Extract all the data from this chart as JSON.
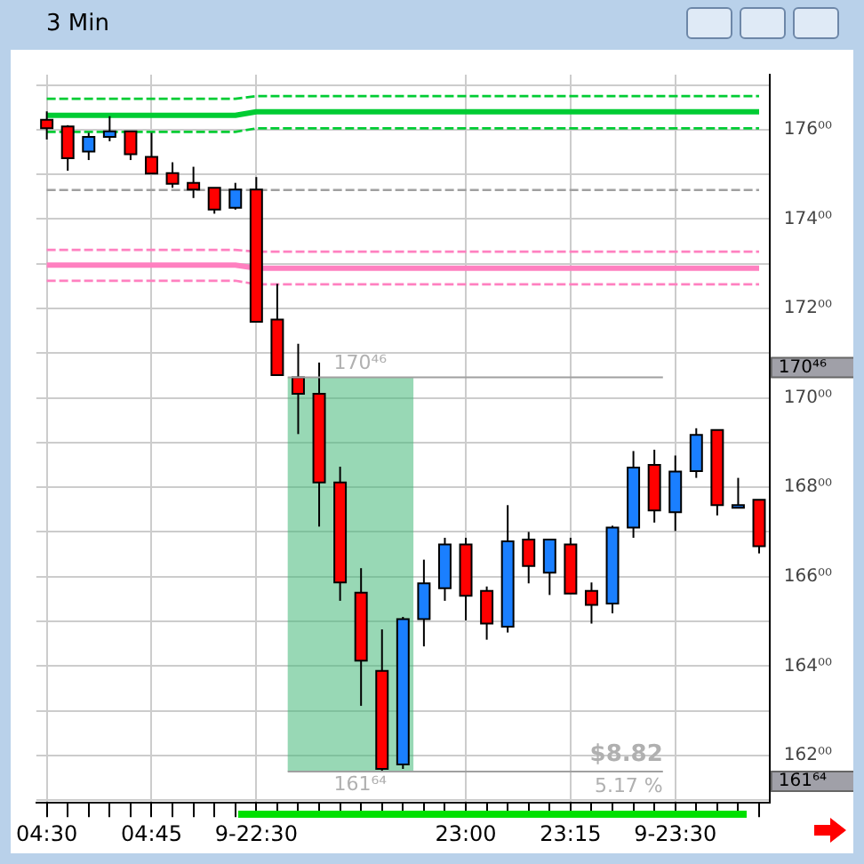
{
  "chart_data": {
    "type": "candlestick",
    "title": "3 Min",
    "categories": [
      "04:30",
      null,
      null,
      null,
      null,
      "04:45",
      null,
      null,
      null,
      null,
      "9-22:30",
      null,
      null,
      null,
      null,
      null,
      null,
      null,
      null,
      null,
      "23:00",
      null,
      null,
      null,
      null,
      "23:15",
      null,
      null,
      null,
      null,
      "9-23:30",
      null,
      null,
      null,
      null
    ],
    "ohlc": [
      [
        176.22,
        176.41,
        175.78,
        176.03
      ],
      [
        176.07,
        176.1,
        175.08,
        175.36
      ],
      [
        175.51,
        175.93,
        175.32,
        175.84
      ],
      [
        175.84,
        176.3,
        175.74,
        175.96
      ],
      [
        175.96,
        175.96,
        175.32,
        175.45
      ],
      [
        175.39,
        175.93,
        175.02,
        175.02
      ],
      [
        175.03,
        175.27,
        174.7,
        174.79
      ],
      [
        174.81,
        175.17,
        174.47,
        174.66
      ],
      [
        174.7,
        174.7,
        174.12,
        174.21
      ],
      [
        174.25,
        174.81,
        174.21,
        174.66
      ],
      [
        174.66,
        174.94,
        171.7,
        171.7
      ],
      [
        171.75,
        172.55,
        170.51,
        170.51
      ],
      [
        170.46,
        171.21,
        169.19,
        170.09
      ],
      [
        170.09,
        170.79,
        167.12,
        168.11
      ],
      [
        168.11,
        168.46,
        165.46,
        165.87
      ],
      [
        165.64,
        166.19,
        163.11,
        164.12
      ],
      [
        163.89,
        164.82,
        161.64,
        161.7
      ],
      [
        161.8,
        165.1,
        161.7,
        165.05
      ],
      [
        165.05,
        166.38,
        164.44,
        165.85
      ],
      [
        165.74,
        166.87,
        165.46,
        166.72
      ],
      [
        166.72,
        166.87,
        165.02,
        165.57
      ],
      [
        165.68,
        165.78,
        164.59,
        164.95
      ],
      [
        164.88,
        167.6,
        164.75,
        166.79
      ],
      [
        166.83,
        167.0,
        165.85,
        166.24
      ],
      [
        166.09,
        166.83,
        165.59,
        166.83
      ],
      [
        166.72,
        166.87,
        165.62,
        165.62
      ],
      [
        165.68,
        165.87,
        164.95,
        165.37
      ],
      [
        165.4,
        167.14,
        165.18,
        167.1
      ],
      [
        167.1,
        168.81,
        166.87,
        168.44
      ],
      [
        168.5,
        168.84,
        167.21,
        167.48
      ],
      [
        167.44,
        168.71,
        167.02,
        168.35
      ],
      [
        168.36,
        169.32,
        168.21,
        169.17
      ],
      [
        169.28,
        169.28,
        167.37,
        167.6
      ],
      [
        167.58,
        168.21,
        167.56,
        167.6
      ],
      [
        167.72,
        167.72,
        166.52,
        166.68
      ]
    ],
    "colors": [
      "#ff0000",
      "#ff0000",
      "#1a7fff",
      "#1a7fff",
      "#ff0000",
      "#ff0000",
      "#ff0000",
      "#ff0000",
      "#ff0000",
      "#1a7fff",
      "#ff0000",
      "#ff0000",
      "#ff0000",
      "#ff0000",
      "#ff0000",
      "#ff0000",
      "#ff0000",
      "#1a7fff",
      "#1a7fff",
      "#1a7fff",
      "#ff0000",
      "#ff0000",
      "#1a7fff",
      "#ff0000",
      "#1a7fff",
      "#ff0000",
      "#ff0000",
      "#1a7fff",
      "#1a7fff",
      "#ff0000",
      "#1a7fff",
      "#1a7fff",
      "#ff0000",
      "#1a7fff",
      "#ff0000"
    ],
    "series": [
      {
        "type": "line",
        "color": "#00cc33",
        "line_style": "dashed",
        "values": [
          176.69,
          176.69,
          176.69,
          176.69,
          176.69,
          176.69,
          176.69,
          176.69,
          176.69,
          176.69,
          176.75,
          176.75,
          176.75,
          176.75,
          176.75,
          176.75,
          176.75,
          176.75,
          176.75,
          176.75,
          176.75,
          176.75,
          176.75,
          176.75,
          176.75,
          176.75,
          176.75,
          176.75,
          176.75,
          176.75,
          176.75,
          176.75,
          176.75,
          176.75,
          176.75
        ]
      },
      {
        "type": "line",
        "color": "#00cc33",
        "line_style": "solid",
        "values": [
          176.32,
          176.32,
          176.32,
          176.32,
          176.32,
          176.32,
          176.32,
          176.32,
          176.32,
          176.32,
          176.4,
          176.4,
          176.4,
          176.4,
          176.4,
          176.4,
          176.4,
          176.4,
          176.4,
          176.4,
          176.4,
          176.4,
          176.4,
          176.4,
          176.4,
          176.4,
          176.4,
          176.4,
          176.4,
          176.4,
          176.4,
          176.4,
          176.4,
          176.4,
          176.4
        ]
      },
      {
        "type": "line",
        "color": "#00cc33",
        "line_style": "dashed",
        "values": [
          175.95,
          175.95,
          175.95,
          175.95,
          175.95,
          175.95,
          175.95,
          175.95,
          175.95,
          175.95,
          176.03,
          176.03,
          176.03,
          176.03,
          176.03,
          176.03,
          176.03,
          176.03,
          176.03,
          176.03,
          176.03,
          176.03,
          176.03,
          176.03,
          176.03,
          176.03,
          176.03,
          176.03,
          176.03,
          176.03,
          176.03,
          176.03,
          176.03,
          176.03,
          176.03
        ]
      },
      {
        "type": "line",
        "color": "#a0a0a0",
        "line_style": "dashed",
        "values": [
          174.65,
          174.65,
          174.65,
          174.65,
          174.65,
          174.65,
          174.65,
          174.65,
          174.65,
          174.65,
          174.65,
          174.65,
          174.65,
          174.65,
          174.65,
          174.65,
          174.65,
          174.65,
          174.65,
          174.65,
          174.65,
          174.65,
          174.65,
          174.65,
          174.65,
          174.65,
          174.65,
          174.65,
          174.65,
          174.65,
          174.65,
          174.65,
          174.65,
          174.65,
          174.65
        ]
      },
      {
        "type": "line",
        "color": "#ff80c0",
        "line_style": "dashed",
        "values": [
          173.31,
          173.31,
          173.31,
          173.31,
          173.31,
          173.31,
          173.31,
          173.31,
          173.31,
          173.31,
          173.27,
          173.27,
          173.27,
          173.27,
          173.27,
          173.27,
          173.27,
          173.27,
          173.27,
          173.27,
          173.27,
          173.27,
          173.27,
          173.27,
          173.27,
          173.27,
          173.27,
          173.27,
          173.27,
          173.27,
          173.27,
          173.27,
          173.27,
          173.27,
          173.27
        ]
      },
      {
        "type": "line",
        "color": "#ff80c0",
        "line_style": "solid",
        "values": [
          172.97,
          172.97,
          172.97,
          172.97,
          172.97,
          172.97,
          172.97,
          172.97,
          172.97,
          172.97,
          172.9,
          172.9,
          172.9,
          172.9,
          172.9,
          172.9,
          172.9,
          172.9,
          172.9,
          172.9,
          172.9,
          172.9,
          172.9,
          172.9,
          172.9,
          172.9,
          172.9,
          172.9,
          172.9,
          172.9,
          172.9,
          172.9,
          172.9,
          172.9,
          172.9
        ]
      },
      {
        "type": "line",
        "color": "#ff80c0",
        "line_style": "dashed",
        "values": [
          172.62,
          172.62,
          172.62,
          172.62,
          172.62,
          172.62,
          172.62,
          172.62,
          172.62,
          172.62,
          172.54,
          172.54,
          172.54,
          172.54,
          172.54,
          172.54,
          172.54,
          172.54,
          172.54,
          172.54,
          172.54,
          172.54,
          172.54,
          172.54,
          172.54,
          172.54,
          172.54,
          172.54,
          172.54,
          172.54,
          172.54,
          172.54,
          172.54,
          172.54,
          172.54
        ]
      }
    ],
    "ylim": [
      160.94,
      177.23
    ],
    "yticks": [
      {
        "value": 161,
        "label": null
      },
      {
        "value": 162,
        "label": "162⁰⁰"
      },
      {
        "value": 163,
        "label": null
      },
      {
        "value": 164,
        "label": "164⁰⁰"
      },
      {
        "value": 165,
        "label": null
      },
      {
        "value": 166,
        "label": "166⁰⁰"
      },
      {
        "value": 167,
        "label": null
      },
      {
        "value": 168,
        "label": "168⁰⁰"
      },
      {
        "value": 169,
        "label": null
      },
      {
        "value": 170,
        "label": "170⁰⁰"
      },
      {
        "value": 171,
        "label": null
      },
      {
        "value": 172,
        "label": "172⁰⁰"
      },
      {
        "value": 173,
        "label": null
      },
      {
        "value": 174,
        "label": "174⁰⁰"
      },
      {
        "value": 175,
        "label": null
      },
      {
        "value": 176,
        "label": "176⁰⁰"
      },
      {
        "value": 177,
        "label": null
      }
    ],
    "ref_lines": [
      {
        "axis": "y",
        "value": 170.46,
        "label": "170⁴⁶",
        "color": "#a0a0a0"
      },
      {
        "axis": "y",
        "value": 161.64,
        "label": "161⁶⁴",
        "color": "#a0a0a0"
      }
    ],
    "bands": [
      {
        "axis": "y",
        "from": 161.64,
        "to": 170.46,
        "color": "#44b878"
      }
    ],
    "annotations": [
      "$8.82",
      "5.17 %"
    ],
    "grid": true,
    "legend": false
  }
}
